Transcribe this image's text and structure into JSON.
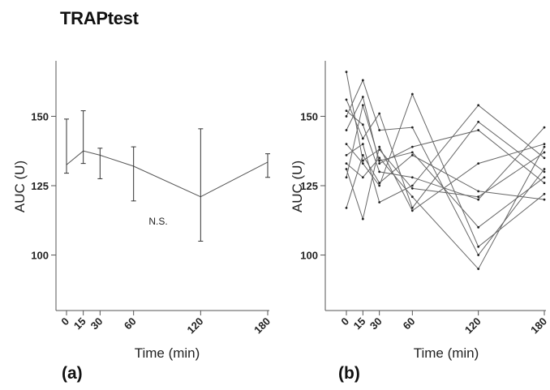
{
  "figure": {
    "title": "TRAPtest",
    "panel_a_label": "(a)",
    "panel_b_label": "(b)"
  },
  "chart_data": [
    {
      "type": "line",
      "panel": "(a)",
      "xlabel": "Time (min)",
      "ylabel": "AUC (U)",
      "x": [
        0,
        15,
        30,
        60,
        120,
        180
      ],
      "x_tick_labels": [
        "0",
        "15",
        "30",
        "60",
        "120",
        "180"
      ],
      "y_ticks": [
        100,
        125,
        150
      ],
      "ylim": [
        80,
        170
      ],
      "grid": false,
      "series": [
        {
          "values": [
            132.5,
            137.5,
            136,
            132,
            121,
            133.5
          ],
          "error_low": [
            129.5,
            133,
            127.5,
            119.5,
            105,
            128
          ],
          "error_high": [
            149,
            152,
            138.5,
            139,
            145.5,
            136.5
          ]
        }
      ],
      "annotations": [
        "N.S."
      ]
    },
    {
      "type": "line",
      "panel": "(b)",
      "xlabel": "Time (min)",
      "ylabel": "AUC (U)",
      "x": [
        0,
        15,
        30,
        60,
        120,
        180
      ],
      "x_tick_labels": [
        "0",
        "15",
        "30",
        "60",
        "120",
        "180"
      ],
      "y_ticks": [
        100,
        125,
        150
      ],
      "ylim": [
        80,
        170
      ],
      "grid": false,
      "series": [
        {
          "values": [
            166,
            134,
            138,
            124,
            121,
            137
          ]
        },
        {
          "values": [
            156,
            142,
            151,
            117,
            148,
            130
          ]
        },
        {
          "values": [
            152,
            147,
            130,
            128,
            120,
            146
          ]
        },
        {
          "values": [
            150,
            163,
            145,
            146,
            100,
            131
          ]
        },
        {
          "values": [
            145,
            157,
            133,
            139,
            145,
            126
          ]
        },
        {
          "values": [
            140,
            133,
            125,
            158,
            103,
            122
          ]
        },
        {
          "values": [
            136,
            140,
            119,
            125,
            154,
            135
          ]
        },
        {
          "values": [
            133,
            128,
            135,
            121,
            95,
            139
          ]
        },
        {
          "values": [
            131,
            113,
            139,
            116,
            133,
            140
          ]
        },
        {
          "values": [
            128,
            154,
            134,
            137,
            110,
            128
          ]
        },
        {
          "values": [
            117,
            136,
            126,
            136,
            123,
            120
          ]
        }
      ]
    }
  ]
}
